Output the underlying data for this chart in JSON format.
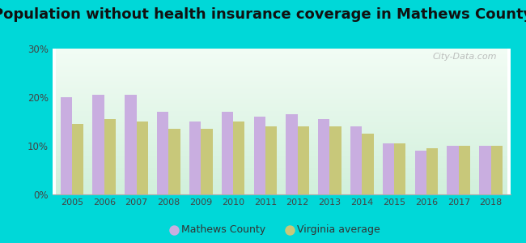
{
  "title": "Population without health insurance coverage in Mathews County",
  "years": [
    2005,
    2006,
    2007,
    2008,
    2009,
    2010,
    2011,
    2012,
    2013,
    2014,
    2015,
    2016,
    2017,
    2018
  ],
  "mathews": [
    20.0,
    20.5,
    20.5,
    17.0,
    15.0,
    17.0,
    16.0,
    16.5,
    15.5,
    14.0,
    10.5,
    9.0,
    10.0,
    10.0
  ],
  "virginia": [
    14.5,
    15.5,
    15.0,
    13.5,
    13.5,
    15.0,
    14.0,
    14.0,
    14.0,
    12.5,
    10.5,
    9.5,
    10.0,
    10.0
  ],
  "mathews_color": "#c9aee0",
  "virginia_color": "#c8c87a",
  "background_outer": "#00d8d8",
  "background_inner_top_left": "#e8f5ee",
  "background_inner_bottom": "#d0edd8",
  "ylim": [
    0,
    30
  ],
  "yticks": [
    0,
    10,
    20,
    30
  ],
  "ytick_labels": [
    "0%",
    "10%",
    "20%",
    "30%"
  ],
  "title_fontsize": 13,
  "legend_mathews": "Mathews County",
  "legend_virginia": "Virginia average",
  "watermark": "City-Data.com"
}
